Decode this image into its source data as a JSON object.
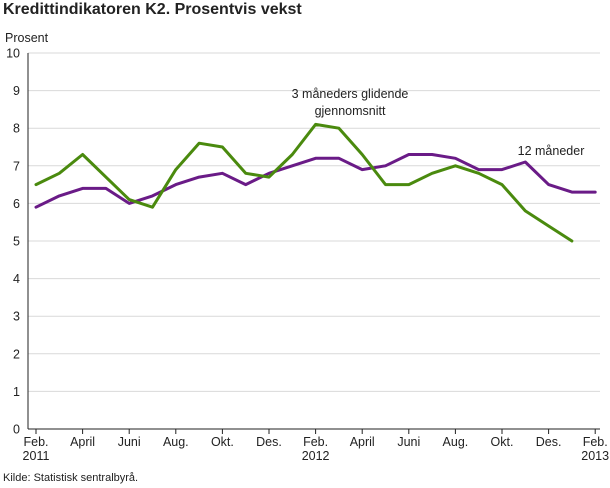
{
  "title": "Kredittindikatoren K2. Prosentvis vekst",
  "source": "Kilde: Statistisk sentralbyrå.",
  "chart_data": {
    "type": "line",
    "title": "Kredittindikatoren K2. Prosentvis vekst",
    "ylabel": "Prosent",
    "xlabel": "",
    "ylim": [
      0,
      10
    ],
    "yticks": [
      0,
      1,
      2,
      3,
      4,
      5,
      6,
      7,
      8,
      9,
      10
    ],
    "grid": true,
    "xticks": [
      {
        "index": 0,
        "label": "Feb.",
        "sub": "2011"
      },
      {
        "index": 2,
        "label": "April",
        "sub": ""
      },
      {
        "index": 4,
        "label": "Juni",
        "sub": ""
      },
      {
        "index": 6,
        "label": "Aug.",
        "sub": ""
      },
      {
        "index": 8,
        "label": "Okt.",
        "sub": ""
      },
      {
        "index": 10,
        "label": "Des.",
        "sub": ""
      },
      {
        "index": 12,
        "label": "Feb.",
        "sub": "2012"
      },
      {
        "index": 14,
        "label": "April",
        "sub": ""
      },
      {
        "index": 16,
        "label": "Juni",
        "sub": ""
      },
      {
        "index": 18,
        "label": "Aug.",
        "sub": ""
      },
      {
        "index": 20,
        "label": "Okt.",
        "sub": ""
      },
      {
        "index": 22,
        "label": "Des.",
        "sub": ""
      },
      {
        "index": 24,
        "label": "Feb.",
        "sub": "2013"
      }
    ],
    "x": [
      "2011-02",
      "2011-03",
      "2011-04",
      "2011-05",
      "2011-06",
      "2011-07",
      "2011-08",
      "2011-09",
      "2011-10",
      "2011-11",
      "2011-12",
      "2012-01",
      "2012-02",
      "2012-03",
      "2012-04",
      "2012-05",
      "2012-06",
      "2012-07",
      "2012-08",
      "2012-09",
      "2012-10",
      "2012-11",
      "2012-12",
      "2013-01",
      "2013-02"
    ],
    "series": [
      {
        "name": "12 måneder",
        "color": "#6a1b87",
        "values": [
          5.9,
          6.2,
          6.4,
          6.4,
          6.0,
          6.2,
          6.5,
          6.7,
          6.8,
          6.5,
          6.8,
          7.0,
          7.2,
          7.2,
          6.9,
          7.0,
          7.3,
          7.3,
          7.2,
          6.9,
          6.9,
          7.1,
          6.5,
          6.3,
          6.3
        ]
      },
      {
        "name": "3 måneders glidende gjennomsnitt",
        "color": "#4a8a0e",
        "values": [
          6.5,
          6.8,
          7.3,
          6.7,
          6.1,
          5.9,
          6.9,
          7.6,
          7.5,
          6.8,
          6.7,
          7.3,
          8.1,
          8.0,
          7.3,
          6.5,
          6.5,
          6.8,
          7.0,
          6.8,
          6.5,
          5.8,
          5.4,
          5.0,
          null
        ]
      }
    ],
    "annotations": [
      {
        "text": "3 måneders glidende",
        "series": 1
      },
      {
        "text": "gjennomsnitt",
        "series": 1
      },
      {
        "text": "12 måneder",
        "series": 0
      }
    ]
  }
}
